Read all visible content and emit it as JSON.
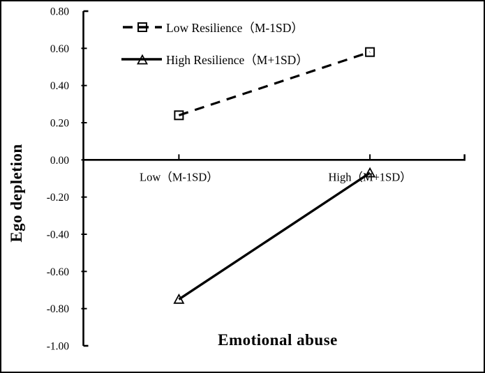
{
  "figure": {
    "background": "#ffffff",
    "frame_color": "#000000",
    "ink_color": "#000000"
  },
  "chart_data": {
    "type": "line",
    "title": "",
    "xlabel": "Emotional abuse",
    "ylabel": "Ego depletion",
    "categories": [
      "Low（M-1SD）",
      "High（M+1SD）"
    ],
    "series": [
      {
        "name": "Low Resilience（M-1SD）",
        "values": [
          0.24,
          0.58
        ],
        "line_style": "dashed",
        "marker": "square",
        "color": "#000000"
      },
      {
        "name": "High Resilience（M+1SD）",
        "values": [
          -0.75,
          -0.07
        ],
        "line_style": "solid",
        "marker": "triangle",
        "color": "#000000"
      }
    ],
    "ylim": [
      -1.0,
      0.8
    ],
    "ytick_step": 0.2,
    "ytick_labels": [
      "0.80",
      "0.60",
      "0.40",
      "0.20",
      "0.00",
      "-0.20",
      "-0.40",
      "-0.60",
      "-0.80",
      "-1.00"
    ],
    "grid": false,
    "legend_position": "top-left-inside"
  }
}
